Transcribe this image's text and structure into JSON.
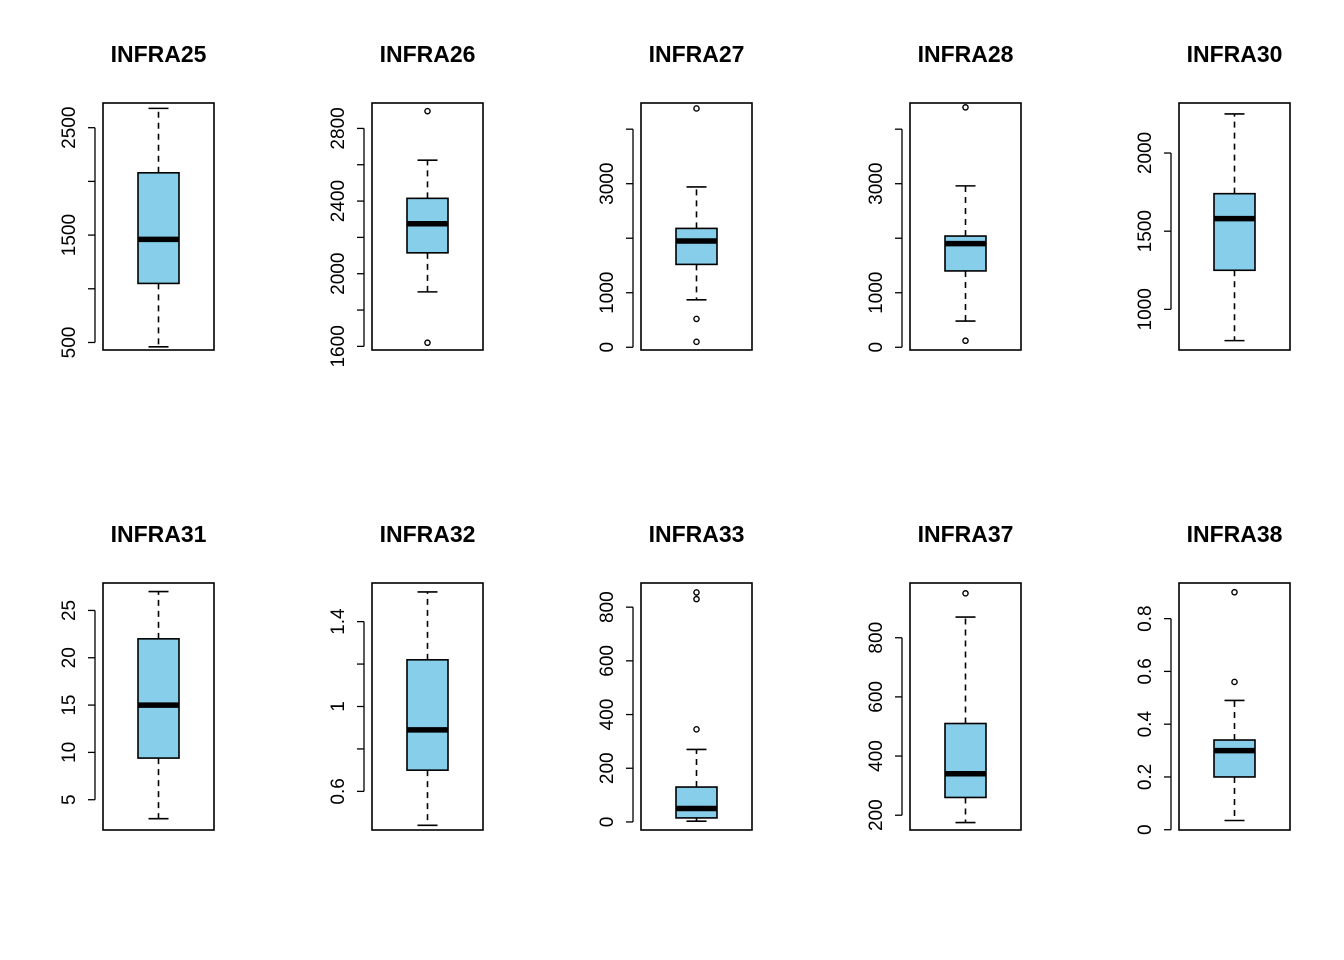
{
  "colors": {
    "box_fill": "#87ceeb",
    "line": "#000000",
    "background": "#ffffff"
  },
  "chart_data": [
    {
      "type": "box",
      "title": "INFRA25",
      "ylim": [
        430,
        2730
      ],
      "yticks": [
        500,
        1500,
        2500
      ],
      "yticks_minor": [
        500,
        1000,
        1500,
        2000,
        2500
      ],
      "min": 460,
      "q1": 1050,
      "median": 1460,
      "q3": 2080,
      "max": 2680,
      "outliers": []
    },
    {
      "type": "box",
      "title": "INFRA26",
      "ylim": [
        1580,
        2940
      ],
      "yticks": [
        1600,
        2000,
        2400,
        2800
      ],
      "yticks_minor": [
        1600,
        1800,
        2000,
        2200,
        2400,
        2600,
        2800
      ],
      "min": 1900,
      "q1": 2115,
      "median": 2275,
      "q3": 2415,
      "max": 2625,
      "outliers": [
        1620,
        2895
      ]
    },
    {
      "type": "box",
      "title": "INFRA27",
      "ylim": [
        -50,
        4480
      ],
      "yticks": [
        0,
        1000,
        3000
      ],
      "yticks_minor": [
        0,
        1000,
        2000,
        3000,
        4000
      ],
      "min": 870,
      "q1": 1520,
      "median": 1950,
      "q3": 2180,
      "max": 2940,
      "outliers": [
        100,
        520,
        4380
      ]
    },
    {
      "type": "box",
      "title": "INFRA28",
      "ylim": [
        -50,
        4480
      ],
      "yticks": [
        0,
        1000,
        3000
      ],
      "yticks_minor": [
        0,
        1000,
        2000,
        3000,
        4000
      ],
      "min": 480,
      "q1": 1400,
      "median": 1900,
      "q3": 2040,
      "max": 2960,
      "outliers": [
        120,
        4400
      ]
    },
    {
      "type": "box",
      "title": "INFRA30",
      "ylim": [
        740,
        2320
      ],
      "yticks": [
        1000,
        1500,
        2000
      ],
      "yticks_minor": [
        1000,
        1500,
        2000
      ],
      "min": 800,
      "q1": 1250,
      "median": 1580,
      "q3": 1740,
      "max": 2250,
      "outliers": []
    },
    {
      "type": "box",
      "title": "INFRA31",
      "ylim": [
        1.8,
        27.9
      ],
      "yticks": [
        5,
        10,
        15,
        20,
        25
      ],
      "yticks_minor": [
        5,
        10,
        15,
        20,
        25
      ],
      "min": 3,
      "q1": 9.4,
      "median": 15,
      "q3": 22,
      "max": 27,
      "outliers": []
    },
    {
      "type": "box",
      "title": "INFRA32",
      "ylim": [
        0.418,
        1.582
      ],
      "yticks": [
        0.6,
        1.0,
        1.4
      ],
      "yticks_minor": [
        0.6,
        0.8,
        1.0,
        1.2,
        1.4
      ],
      "min": 0.44,
      "q1": 0.7,
      "median": 0.89,
      "q3": 1.22,
      "max": 1.54,
      "outliers": []
    },
    {
      "type": "box",
      "title": "INFRA33",
      "ylim": [
        -30,
        890
      ],
      "yticks": [
        0,
        200,
        400,
        600,
        800
      ],
      "yticks_minor": [
        0,
        200,
        400,
        600,
        800
      ],
      "min": 3,
      "q1": 15,
      "median": 50,
      "q3": 130,
      "max": 270,
      "outliers": [
        345,
        830,
        855
      ]
    },
    {
      "type": "box",
      "title": "INFRA37",
      "ylim": [
        150,
        985
      ],
      "yticks": [
        200,
        400,
        600,
        800
      ],
      "yticks_minor": [
        200,
        400,
        600,
        800
      ],
      "min": 175,
      "q1": 260,
      "median": 340,
      "q3": 510,
      "max": 870,
      "outliers": [
        950
      ]
    },
    {
      "type": "box",
      "title": "INFRA38",
      "ylim": [
        -0.001,
        0.935
      ],
      "yticks": [
        0.0,
        0.2,
        0.4,
        0.6,
        0.8
      ],
      "yticks_minor": [
        0.0,
        0.2,
        0.4,
        0.6,
        0.8
      ],
      "min": 0.035,
      "q1": 0.2,
      "median": 0.3,
      "q3": 0.34,
      "max": 0.49,
      "outliers": [
        0.56,
        0.9
      ]
    }
  ]
}
